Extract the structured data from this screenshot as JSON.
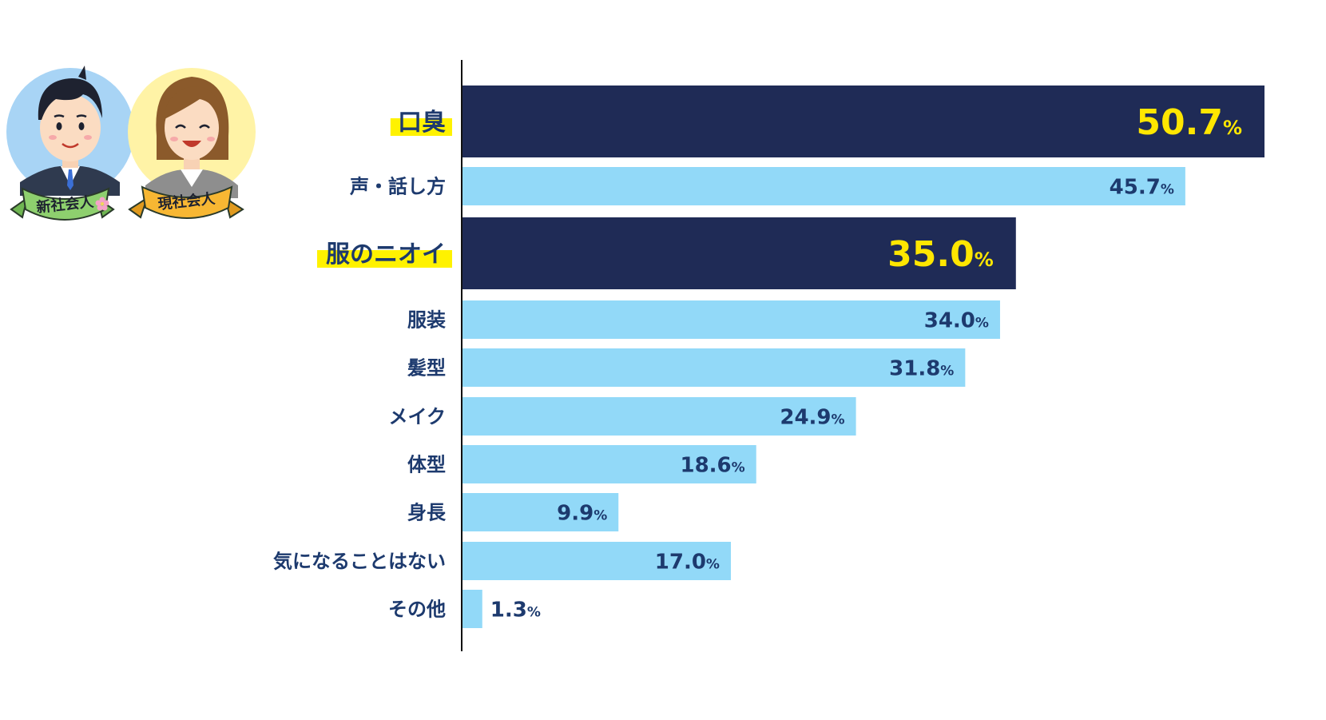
{
  "chart_data": {
    "type": "bar",
    "orientation": "horizontal",
    "unit": "%",
    "xlim": [
      0,
      50.7
    ],
    "categories": [
      "口臭",
      "声・話し方",
      "服のニオイ",
      "服装",
      "髪型",
      "メイク",
      "体型",
      "身長",
      "気になることはない",
      "その他"
    ],
    "values": [
      50.7,
      45.7,
      35.0,
      34.0,
      31.8,
      24.9,
      18.6,
      9.9,
      17.0,
      1.3
    ],
    "value_labels": [
      "50.7",
      "45.7",
      "35.0",
      "34.0",
      "31.8",
      "24.9",
      "18.6",
      "9.9",
      "17.0",
      "1.3"
    ],
    "highlighted": [
      true,
      false,
      true,
      false,
      false,
      false,
      false,
      false,
      false,
      false
    ],
    "colors": {
      "highlight_bar": "#1f2b56",
      "normal_bar": "#92d9f8",
      "highlight_value": "#ffe600",
      "normal_value": "#1d3a6e",
      "label_text": "#1d3a6e",
      "label_highlight_marker": "#fff200",
      "axis_line": "#111111"
    },
    "grid": false,
    "legend": "none"
  },
  "badges": [
    {
      "text": "新社会人",
      "icon": "sakura-flower-icon",
      "circle_color": "#a8d4f5",
      "ribbon_color": "#8ed06e"
    },
    {
      "text": "現社会人",
      "icon": "none",
      "circle_color": "#fff3a6",
      "ribbon_color": "#f7b733"
    }
  ]
}
